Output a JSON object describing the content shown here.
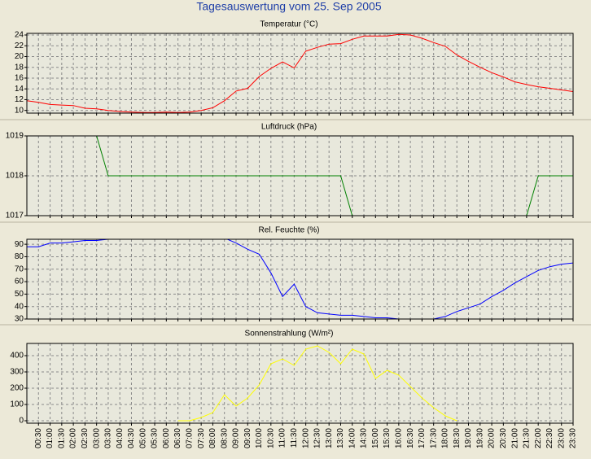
{
  "title": "Tagesauswertung vom 25. Sep 2005",
  "chart_data": [
    {
      "type": "line",
      "title": "Temperatur (°C)",
      "color": "#ff0000",
      "values": [
        11.8,
        11.5,
        11.1,
        11.0,
        10.9,
        10.4,
        10.3,
        10.0,
        9.8,
        9.7,
        9.6,
        9.6,
        9.7,
        9.6,
        9.7,
        10.0,
        10.5,
        11.8,
        13.6,
        14.1,
        16.3,
        17.8,
        19.0,
        17.9,
        21.0,
        21.7,
        22.3,
        22.4,
        23.2,
        23.8,
        23.8,
        23.8,
        24.1,
        24.0,
        23.4,
        22.6,
        21.9,
        20.3,
        19.1,
        18.0,
        17.0,
        16.2,
        15.3,
        14.8,
        14.4,
        14.1,
        13.8,
        13.5
      ],
      "ylim": [
        9.5,
        24.3
      ],
      "yticks": [
        10,
        12,
        14,
        16,
        18,
        20,
        22,
        24
      ],
      "grid": true
    },
    {
      "type": "line",
      "title": "Luftdruck (hPa)",
      "color": "#008000",
      "values": [
        1019,
        1019,
        1019,
        1019,
        1019,
        1019,
        1019,
        1018,
        1018,
        1018,
        1018,
        1018,
        1018,
        1018,
        1018,
        1018,
        1018,
        1018,
        1018,
        1018,
        1018,
        1018,
        1018,
        1018,
        1018,
        1018,
        1018,
        1018,
        1017,
        1017,
        1017,
        1017,
        1017,
        1017,
        1017,
        1017,
        1017,
        1017,
        1017,
        1017,
        1017,
        1017,
        1017,
        1017,
        1018,
        1018,
        1018,
        1018
      ],
      "ylim": [
        1017,
        1019
      ],
      "yticks": [
        1017,
        1018,
        1019
      ],
      "grid": true
    },
    {
      "type": "line",
      "title": "Rel. Feuchte (%)",
      "color": "#0000ff",
      "values": [
        88,
        88,
        91,
        91,
        92,
        93,
        93,
        94,
        94,
        94,
        94,
        94,
        95,
        95,
        95,
        95,
        95,
        95,
        91,
        86,
        82,
        67,
        48,
        58,
        40,
        35,
        34,
        33,
        33,
        32,
        31,
        31,
        30,
        30,
        30,
        30,
        32,
        36,
        39,
        42,
        48,
        53,
        59,
        64,
        69,
        72,
        74,
        75
      ],
      "ylim": [
        30,
        94
      ],
      "yticks": [
        30,
        40,
        50,
        60,
        70,
        80,
        90
      ],
      "grid": true
    },
    {
      "type": "line",
      "title": "Sonnenstrahlung (W/m²)",
      "color": "#ffff00",
      "values": [
        null,
        null,
        null,
        null,
        null,
        null,
        null,
        null,
        null,
        null,
        null,
        null,
        null,
        0,
        0,
        20,
        50,
        160,
        90,
        140,
        220,
        350,
        380,
        340,
        440,
        460,
        420,
        350,
        440,
        410,
        260,
        310,
        280,
        210,
        140,
        80,
        30,
        0,
        null,
        null,
        null,
        null,
        null,
        null,
        null,
        null,
        null,
        null
      ],
      "ylim": [
        -15,
        475
      ],
      "yticks": [
        0,
        100,
        200,
        300,
        400
      ],
      "grid": true,
      "categories": [
        null,
        "00:30",
        "01:00",
        "01:30",
        "02:00",
        "02:30",
        "03:00",
        "03:30",
        "04:00",
        "04:30",
        "05:00",
        "05:30",
        "06:00",
        "06:30",
        "07:00",
        "07:30",
        "08:00",
        "08:30",
        "09:00",
        "09:30",
        "10:00",
        "10:30",
        "11:00",
        "11:30",
        "12:00",
        "12:30",
        "13:00",
        "13:30",
        "14:00",
        "14:30",
        "15:00",
        "15:30",
        "16:00",
        "16:30",
        "17:00",
        "17:30",
        "18:00",
        "18:30",
        "19:00",
        "19:30",
        "20:00",
        "20:30",
        "21:00",
        "21:30",
        "22:00",
        "22:30",
        "23:00",
        "23:30"
      ]
    }
  ]
}
